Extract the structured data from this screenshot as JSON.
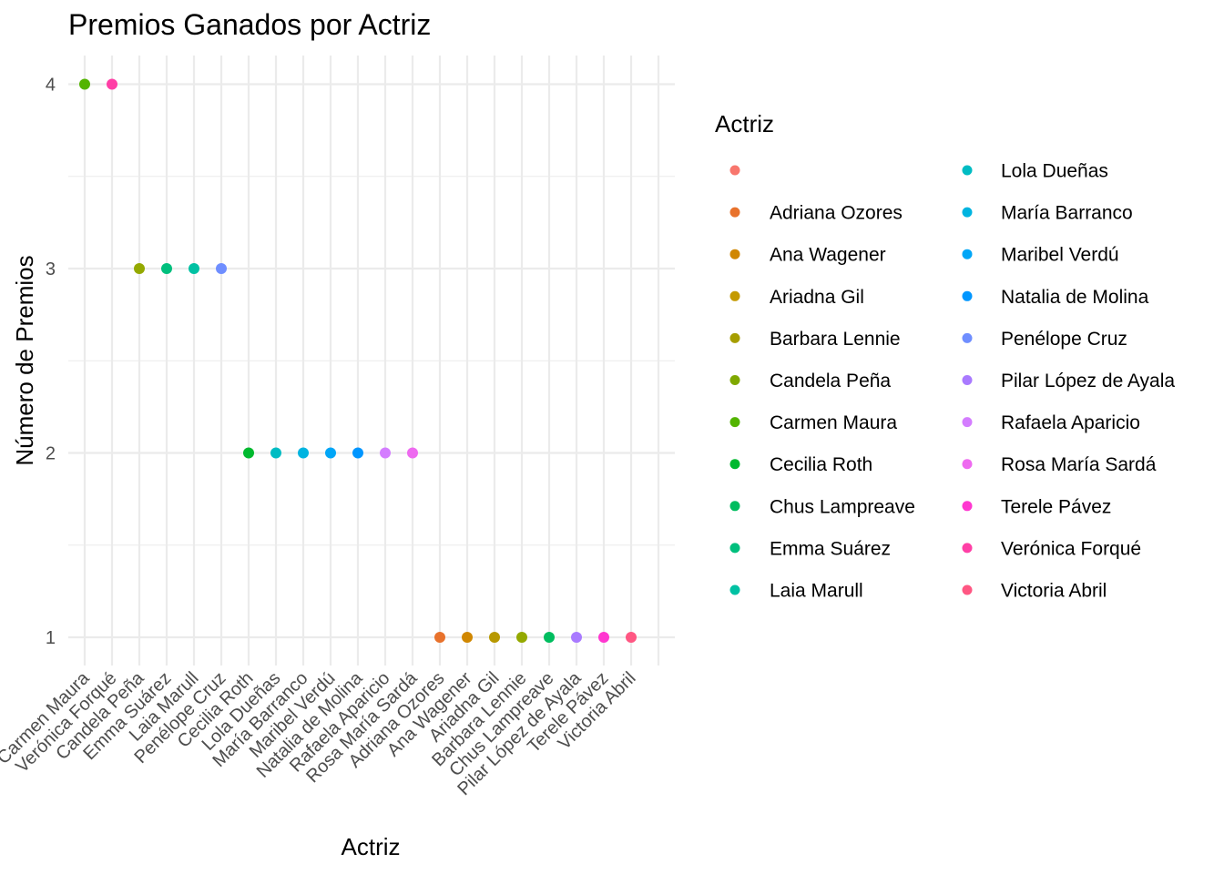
{
  "chart_data": {
    "type": "scatter",
    "title": "Premios Ganados por Actriz",
    "xlabel": "Actriz",
    "ylabel": "Número de Premios",
    "ylim": [
      0.87,
      4.13
    ],
    "yticks": [
      1,
      2,
      3,
      4
    ],
    "grid": true,
    "legend_title": "Actriz",
    "legend_placement": "right",
    "categories": [
      "Carmen Maura",
      "Verónica Forqué",
      "Candela Peña",
      "Emma Suárez",
      "Laia Marull",
      "Penélope Cruz",
      "Cecilia Roth",
      "Lola Dueñas",
      "María Barranco",
      "Maribel Verdú",
      "Natalia de Molina",
      "Rafaela Aparicio",
      "Rosa María Sardá",
      "Adriana Ozores",
      "Ana Wagener",
      "Ariadna Gil",
      "Barbara Lennie",
      "Chus Lampreave",
      "Pilar López de Ayala",
      "Terele Pávez",
      "Victoria Abril",
      ""
    ],
    "points": [
      {
        "x": "Carmen Maura",
        "y": 4,
        "color": "#53B400"
      },
      {
        "x": "Verónica Forqué",
        "y": 4,
        "color": "#FF3FA6"
      },
      {
        "x": "Candela Peña",
        "y": 3,
        "color": "#94A900"
      },
      {
        "x": "Emma Suárez",
        "y": 3,
        "color": "#00BF7D"
      },
      {
        "x": "Laia Marull",
        "y": 3,
        "color": "#00C1A3"
      },
      {
        "x": "Penélope Cruz",
        "y": 3,
        "color": "#6F8EFF"
      },
      {
        "x": "Cecilia Roth",
        "y": 2,
        "color": "#00B92F"
      },
      {
        "x": "Lola Dueñas",
        "y": 2,
        "color": "#00BCC3"
      },
      {
        "x": "María Barranco",
        "y": 2,
        "color": "#00B4E0"
      },
      {
        "x": "Maribel Verdú",
        "y": 2,
        "color": "#00A6F7"
      },
      {
        "x": "Natalia de Molina",
        "y": 2,
        "color": "#0096FF"
      },
      {
        "x": "Rafaela Aparicio",
        "y": 2,
        "color": "#D47DFF"
      },
      {
        "x": "Rosa María Sardá",
        "y": 2,
        "color": "#EE6AF0"
      },
      {
        "x": "Adriana Ozores",
        "y": 1,
        "color": "#E8722C"
      },
      {
        "x": "Ana Wagener",
        "y": 1,
        "color": "#D08700"
      },
      {
        "x": "Ariadna Gil",
        "y": 1,
        "color": "#B79800"
      },
      {
        "x": "Barbara Lennie",
        "y": 1,
        "color": "#94A900"
      },
      {
        "x": "Chus Lampreave",
        "y": 1,
        "color": "#00BD5F"
      },
      {
        "x": "Pilar López de Ayala",
        "y": 1,
        "color": "#A97AFF"
      },
      {
        "x": "Terele Pávez",
        "y": 1,
        "color": "#FF37D0"
      },
      {
        "x": "Victoria Abril",
        "y": 1,
        "color": "#FF5783"
      }
    ],
    "legend": {
      "columns": [
        [
          {
            "label": "",
            "color": "#F8766D"
          },
          {
            "label": "Adriana Ozores",
            "color": "#E8722C"
          },
          {
            "label": "Ana Wagener",
            "color": "#D08700"
          },
          {
            "label": "Ariadna Gil",
            "color": "#C49A00"
          },
          {
            "label": "Barbara Lennie",
            "color": "#A69E00"
          },
          {
            "label": "Candela Peña",
            "color": "#7FA800"
          },
          {
            "label": "Carmen Maura",
            "color": "#53B400"
          },
          {
            "label": "Cecilia Roth",
            "color": "#00B92F"
          },
          {
            "label": "Chus Lampreave",
            "color": "#00BD5F"
          },
          {
            "label": "Emma Suárez",
            "color": "#00BF7D"
          },
          {
            "label": "Laia Marull",
            "color": "#00C1A3"
          }
        ],
        [
          {
            "label": "Lola Dueñas",
            "color": "#00BCC3"
          },
          {
            "label": "María Barranco",
            "color": "#00B4E0"
          },
          {
            "label": "Maribel Verdú",
            "color": "#00A6F7"
          },
          {
            "label": "Natalia de Molina",
            "color": "#0096FF"
          },
          {
            "label": "Penélope Cruz",
            "color": "#6F8EFF"
          },
          {
            "label": "Pilar López de Ayala",
            "color": "#A97AFF"
          },
          {
            "label": "Rafaela Aparicio",
            "color": "#D47DFF"
          },
          {
            "label": "Rosa María Sardá",
            "color": "#EE6AF0"
          },
          {
            "label": "Terele Pávez",
            "color": "#FF37D0"
          },
          {
            "label": "Verónica Forqué",
            "color": "#FF3FA6"
          },
          {
            "label": "Victoria Abril",
            "color": "#FF5783"
          }
        ]
      ]
    }
  }
}
